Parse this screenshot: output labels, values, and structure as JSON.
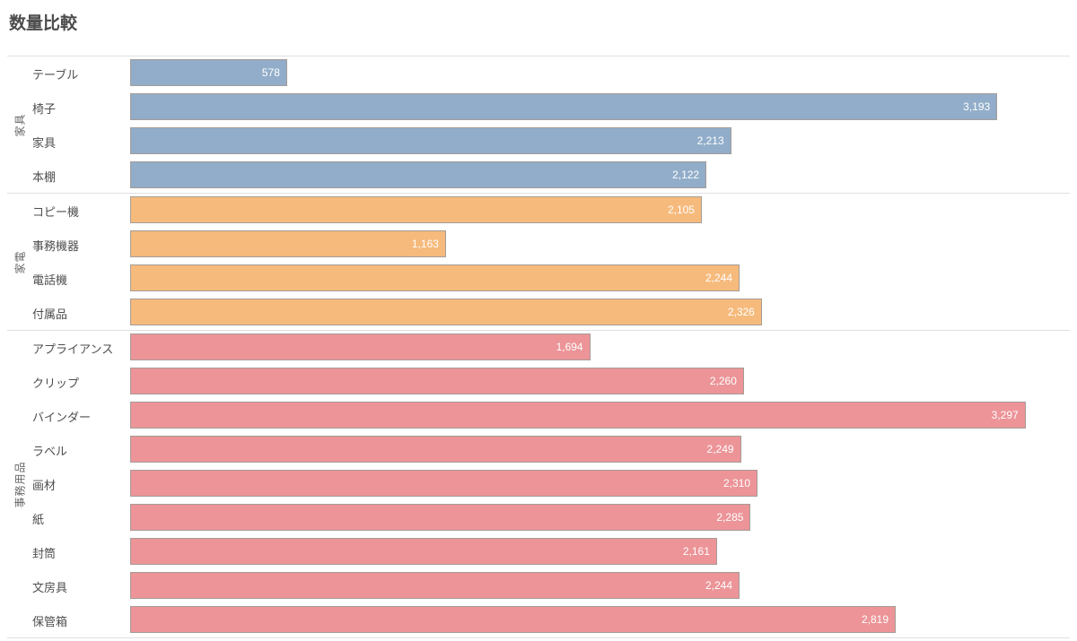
{
  "chart_data": {
    "type": "bar",
    "orientation": "horizontal",
    "title": "数量比較",
    "xlabel": "",
    "ylabel": "",
    "xlim": [
      0,
      3460
    ],
    "grid": false,
    "legend": false,
    "value_labels": "inside-end, white",
    "bar_border_color": "#a49c97",
    "separator_color": "#e1e1e1",
    "groups": [
      {
        "category": "家具",
        "color": "#91adc9",
        "items": [
          {
            "label": "テーブル",
            "value": 578,
            "display": "578"
          },
          {
            "label": "椅子",
            "value": 3193,
            "display": "3,193"
          },
          {
            "label": "家具",
            "value": 2213,
            "display": "2,213"
          },
          {
            "label": "本棚",
            "value": 2122,
            "display": "2,122"
          }
        ]
      },
      {
        "category": "家電",
        "color": "#f6ba7c",
        "items": [
          {
            "label": "コピー機",
            "value": 2105,
            "display": "2,105"
          },
          {
            "label": "事務機器",
            "value": 1163,
            "display": "1,163"
          },
          {
            "label": "電話機",
            "value": 2244,
            "display": "2,244"
          },
          {
            "label": "付属品",
            "value": 2326,
            "display": "2,326"
          }
        ]
      },
      {
        "category": "事務用品",
        "color": "#ec9498",
        "items": [
          {
            "label": "アプライアンス",
            "value": 1694,
            "display": "1,694"
          },
          {
            "label": "クリップ",
            "value": 2260,
            "display": "2,260"
          },
          {
            "label": "バインダー",
            "value": 3297,
            "display": "3,297"
          },
          {
            "label": "ラベル",
            "value": 2249,
            "display": "2,249"
          },
          {
            "label": "画材",
            "value": 2310,
            "display": "2,310"
          },
          {
            "label": "紙",
            "value": 2285,
            "display": "2,285"
          },
          {
            "label": "封筒",
            "value": 2161,
            "display": "2,161"
          },
          {
            "label": "文房具",
            "value": 2244,
            "display": "2,244"
          },
          {
            "label": "保管箱",
            "value": 2819,
            "display": "2,819"
          }
        ]
      }
    ]
  }
}
